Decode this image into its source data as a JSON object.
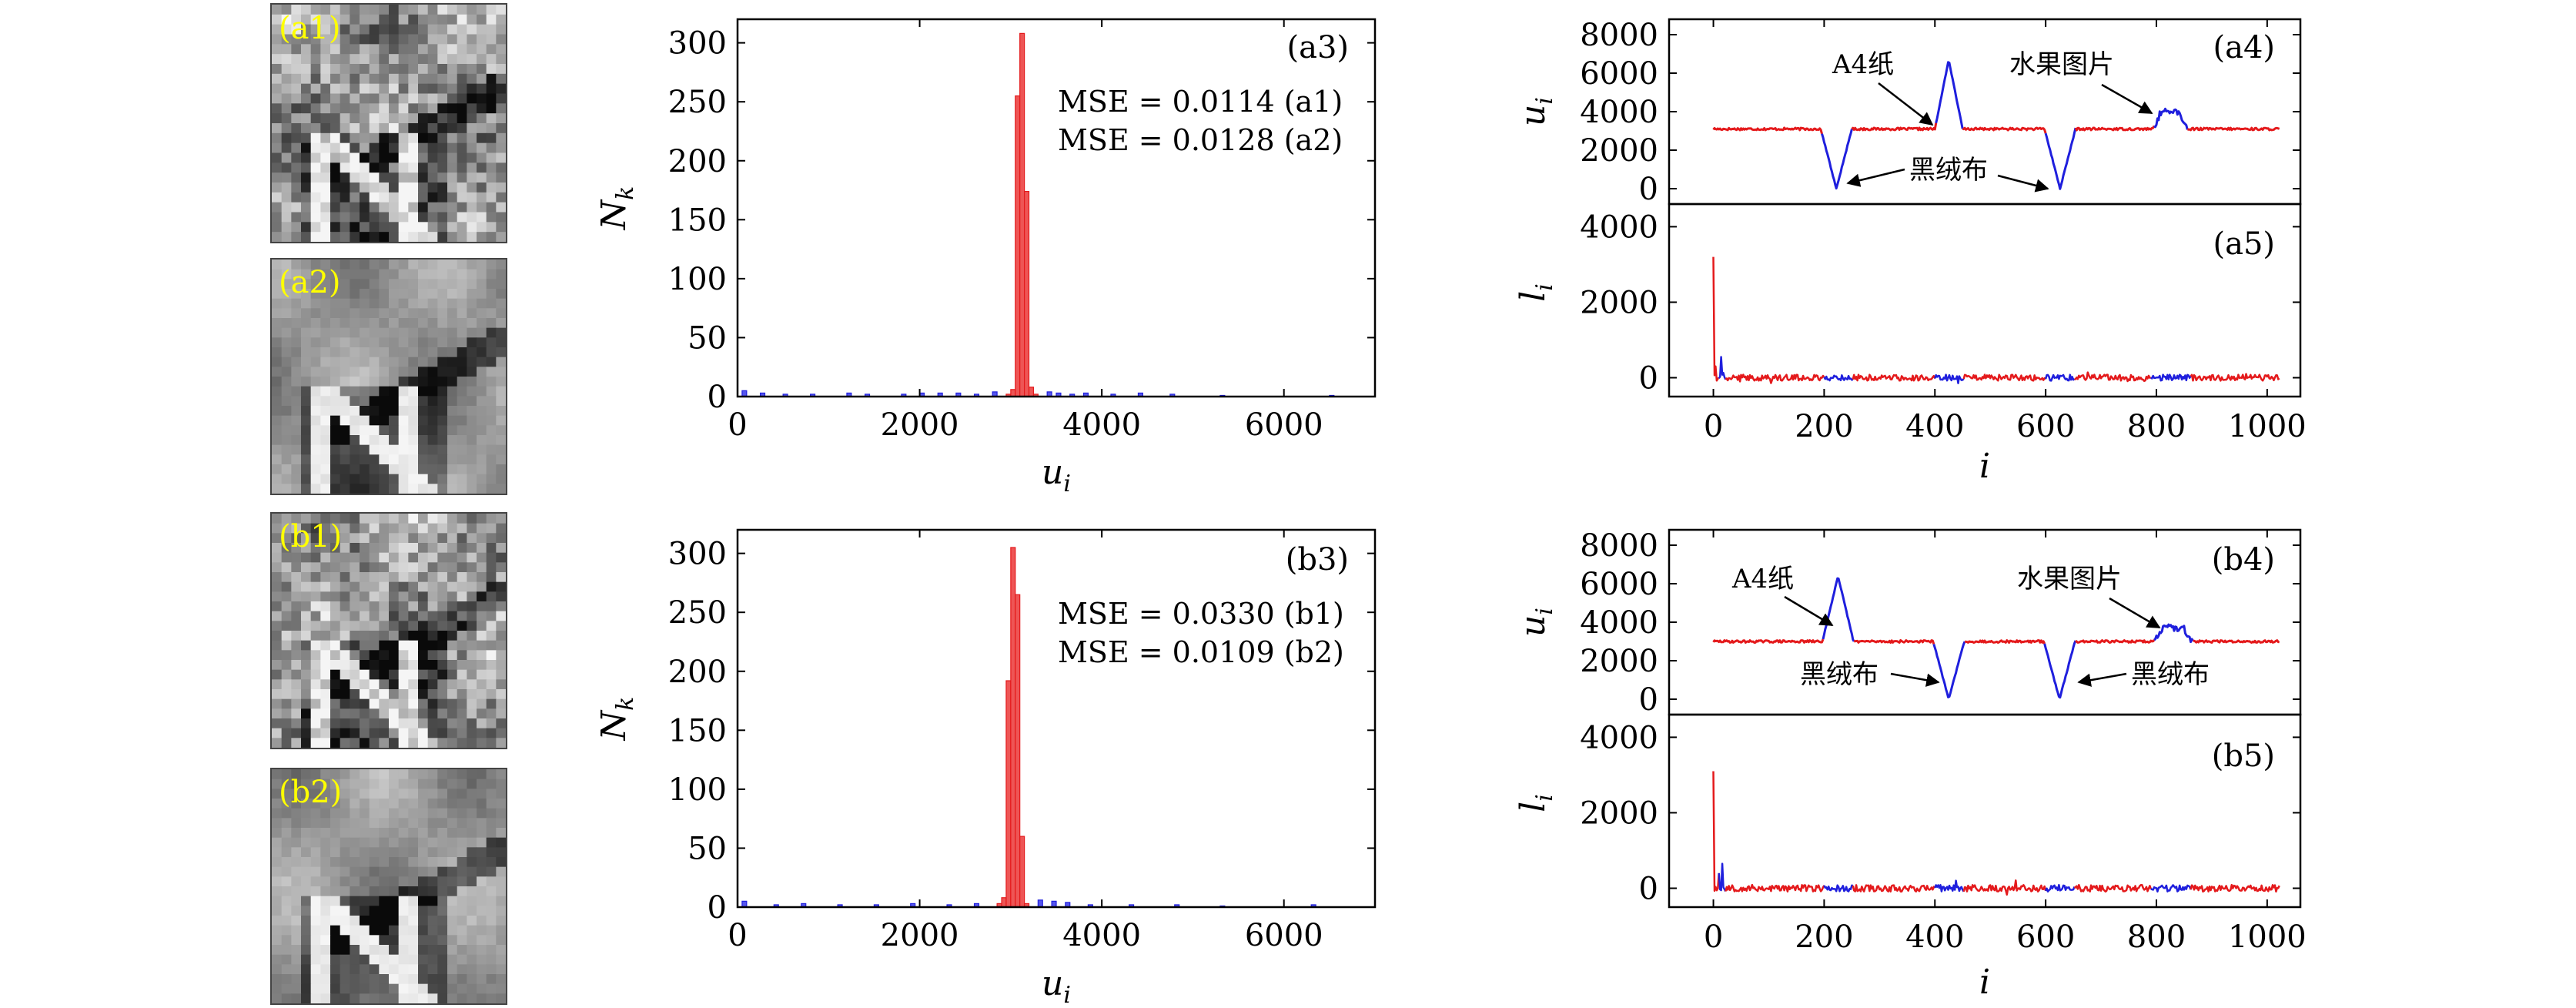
{
  "figure": {
    "images": [
      {
        "id": "a1",
        "label": "(a1)"
      },
      {
        "id": "a2",
        "label": "(a2)"
      },
      {
        "id": "b1",
        "label": "(b1)"
      },
      {
        "id": "b2",
        "label": "(b2)"
      }
    ]
  },
  "colors": {
    "red": "#e41a1c",
    "blue": "#1f1fdd",
    "hist_red_fill": "#ee5555",
    "hist_blue_fill": "#5555ee",
    "image_label": "#ffff00"
  },
  "chart_data": [
    {
      "id": "a3",
      "type": "bar",
      "panel_label": "(a3)",
      "xlabel": "u_i",
      "ylabel": "N_k",
      "xlim": [
        0,
        7000
      ],
      "ylim": [
        0,
        320
      ],
      "xticks": [
        "0",
        "2000",
        "4000",
        "6000"
      ],
      "yticks": [
        "0",
        "50",
        "100",
        "150",
        "200",
        "250",
        "300"
      ],
      "annotations": [
        "MSE = 0.0114 (a1)",
        "MSE = 0.0128 (a2)"
      ],
      "series": [
        {
          "color": "red",
          "bin_width": 50,
          "bins": [
            [
              2950,
              2
            ],
            [
              3000,
              6
            ],
            [
              3050,
              255
            ],
            [
              3100,
              308
            ],
            [
              3150,
              174
            ],
            [
              3200,
              8
            ],
            [
              3250,
              2
            ]
          ]
        },
        {
          "color": "blue",
          "bin_width": 50,
          "bins": [
            [
              50,
              5
            ],
            [
              250,
              3
            ],
            [
              500,
              2
            ],
            [
              800,
              2
            ],
            [
              1200,
              3
            ],
            [
              1400,
              2
            ],
            [
              1800,
              2
            ],
            [
              2000,
              3
            ],
            [
              2200,
              3
            ],
            [
              2400,
              3
            ],
            [
              2600,
              2
            ],
            [
              2800,
              4
            ],
            [
              3400,
              4
            ],
            [
              3500,
              3
            ],
            [
              3650,
              2
            ],
            [
              3800,
              3
            ],
            [
              4100,
              2
            ],
            [
              4400,
              3
            ],
            [
              4750,
              2
            ],
            [
              5300,
              1
            ],
            [
              6500,
              1
            ]
          ]
        }
      ]
    },
    {
      "id": "b3",
      "type": "bar",
      "panel_label": "(b3)",
      "xlabel": "u_i",
      "ylabel": "N_k",
      "xlim": [
        0,
        7000
      ],
      "ylim": [
        0,
        320
      ],
      "xticks": [
        "0",
        "2000",
        "4000",
        "6000"
      ],
      "yticks": [
        "0",
        "50",
        "100",
        "150",
        "200",
        "250",
        "300"
      ],
      "annotations": [
        "MSE = 0.0330 (b1)",
        "MSE = 0.0109 (b2)"
      ],
      "series": [
        {
          "color": "red",
          "bin_width": 50,
          "bins": [
            [
              2850,
              3
            ],
            [
              2900,
              8
            ],
            [
              2950,
              192
            ],
            [
              3000,
              305
            ],
            [
              3050,
              265
            ],
            [
              3100,
              60
            ],
            [
              3150,
              3
            ]
          ]
        },
        {
          "color": "blue",
          "bin_width": 50,
          "bins": [
            [
              50,
              5
            ],
            [
              400,
              2
            ],
            [
              700,
              3
            ],
            [
              1100,
              2
            ],
            [
              1500,
              2
            ],
            [
              1900,
              3
            ],
            [
              2300,
              2
            ],
            [
              2600,
              3
            ],
            [
              3300,
              6
            ],
            [
              3450,
              5
            ],
            [
              3600,
              4
            ],
            [
              3850,
              2
            ],
            [
              4300,
              2
            ],
            [
              4800,
              2
            ],
            [
              5300,
              1
            ],
            [
              6300,
              2
            ]
          ]
        }
      ]
    },
    {
      "id": "a4",
      "type": "line",
      "panel_label": "(a4)",
      "ylabel": "u_i",
      "xlim": [
        -80,
        1060
      ],
      "ylim": [
        -800,
        8800
      ],
      "yticks": [
        "0",
        "2000",
        "4000",
        "6000",
        "8000"
      ],
      "baseline": 3100,
      "events": [
        {
          "center": 222,
          "halfwidth": 28,
          "peak": 0
        },
        {
          "center": 425,
          "halfwidth": 25,
          "peak": 6700
        },
        {
          "center": 626,
          "halfwidth": 28,
          "peak": 0
        },
        {
          "center": 825,
          "halfwidth": 30,
          "peak": 4000,
          "shape": "plateau"
        }
      ],
      "callouts": [
        {
          "text": "A4纸"
        },
        {
          "text": "水果图片"
        },
        {
          "text": "黑绒布"
        }
      ]
    },
    {
      "id": "a5",
      "type": "line",
      "panel_label": "(a5)",
      "xlabel": "i",
      "ylabel": "l_i",
      "xlim": [
        -80,
        1060
      ],
      "ylim": [
        -500,
        4600
      ],
      "xticks": [
        "0",
        "200",
        "400",
        "600",
        "800",
        "1000"
      ],
      "yticks": [
        "0",
        "2000",
        "4000"
      ],
      "spikes": [
        {
          "x": 0,
          "value": 3200
        },
        {
          "x": 4,
          "value": 300
        },
        {
          "x": 14,
          "value": 550
        }
      ],
      "noise_amplitude": 80
    },
    {
      "id": "b4",
      "type": "line",
      "panel_label": "(b4)",
      "ylabel": "u_i",
      "xlim": [
        -80,
        1060
      ],
      "ylim": [
        -800,
        8800
      ],
      "yticks": [
        "0",
        "2000",
        "4000",
        "6000",
        "8000"
      ],
      "baseline": 3000,
      "events": [
        {
          "center": 225,
          "halfwidth": 28,
          "peak": 6400
        },
        {
          "center": 425,
          "halfwidth": 28,
          "peak": 0
        },
        {
          "center": 625,
          "halfwidth": 28,
          "peak": 0
        },
        {
          "center": 830,
          "halfwidth": 35,
          "peak": 3700,
          "shape": "plateau"
        }
      ],
      "callouts": [
        {
          "text": "A4纸"
        },
        {
          "text": "水果图片"
        },
        {
          "text": "黑绒布"
        },
        {
          "text": "黑绒布"
        }
      ]
    },
    {
      "id": "b5",
      "type": "line",
      "panel_label": "(b5)",
      "xlabel": "i",
      "ylabel": "l_i",
      "xlim": [
        -80,
        1060
      ],
      "ylim": [
        -500,
        4600
      ],
      "xticks": [
        "0",
        "200",
        "400",
        "600",
        "800",
        "1000"
      ],
      "yticks": [
        "0",
        "2000",
        "4000"
      ],
      "spikes": [
        {
          "x": 0,
          "value": 3100
        },
        {
          "x": 10,
          "value": 400
        },
        {
          "x": 16,
          "value": 650
        }
      ],
      "noise_amplitude": 90
    }
  ]
}
